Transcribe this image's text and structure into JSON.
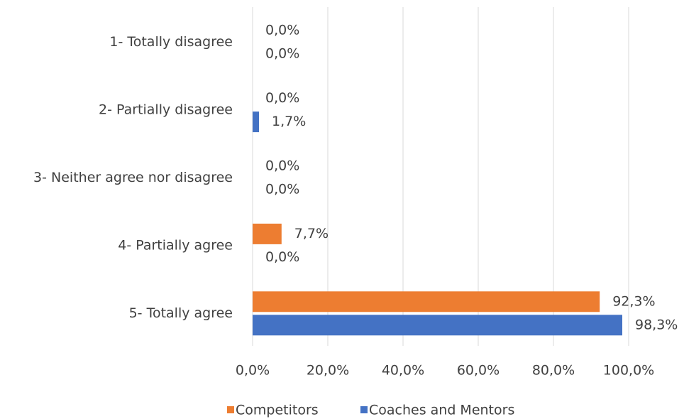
{
  "chart_data": {
    "type": "bar",
    "orientation": "horizontal",
    "categories": [
      "1- Totally disagree",
      "2- Partially disagree",
      "3- Neither agree nor disagree",
      "4- Partially agree",
      "5- Totally agree"
    ],
    "series": [
      {
        "name": "Competitors",
        "color": "#ed7d31",
        "values": [
          0,
          0,
          0,
          7.7,
          92.3
        ],
        "value_labels": [
          "0,0%",
          "0,0%",
          "0,0%",
          "7,7%",
          "92,3%"
        ]
      },
      {
        "name": "Coaches and Mentors",
        "color": "#4472c4",
        "values": [
          0,
          1.7,
          0,
          0,
          98.3
        ],
        "value_labels": [
          "0,0%",
          "1,7%",
          "0,0%",
          "0,0%",
          "98,3%"
        ]
      }
    ],
    "xlim": [
      0,
      100
    ],
    "xticks": [
      {
        "value": 0,
        "label": "0,0%"
      },
      {
        "value": 20,
        "label": "20,0%"
      },
      {
        "value": 40,
        "label": "40,0%"
      },
      {
        "value": 60,
        "label": "60,0%"
      },
      {
        "value": 80,
        "label": "80,0%"
      },
      {
        "value": 100,
        "label": "100,0%"
      }
    ],
    "grid": true,
    "legend": "bottom"
  }
}
